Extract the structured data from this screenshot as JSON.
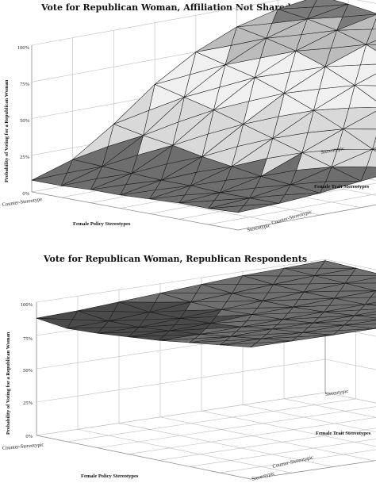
{
  "chart_data": [
    {
      "type": "surface",
      "title": "Vote for Republican Woman, Affiliation Not Shared",
      "zlabel": "Probability of Voting for a Republican Woman",
      "xlabel": "Female Policy Stereotypes",
      "ylabel": "Female Trait Stereotypes",
      "x_ticks": [
        "Counter-Stereotype",
        "Stereotypic"
      ],
      "y_ticks": [
        "Counter-Stereotypic",
        "Stereotypic"
      ],
      "z_ticks": [
        "0%",
        "25%",
        "50%",
        "75%",
        "100%"
      ],
      "zlim": [
        0,
        1
      ],
      "x": [
        0,
        1,
        2,
        3,
        4,
        5,
        6,
        7
      ],
      "y": [
        0,
        1,
        2,
        3,
        4,
        5,
        6,
        7
      ],
      "z": [
        [
          0.08,
          0.08,
          0.09,
          0.09,
          0.1,
          0.11,
          0.11,
          0.12
        ],
        [
          0.17,
          0.16,
          0.15,
          0.14,
          0.14,
          0.13,
          0.13,
          0.13
        ],
        [
          0.36,
          0.32,
          0.29,
          0.25,
          0.22,
          0.19,
          0.17,
          0.15
        ],
        [
          0.58,
          0.53,
          0.48,
          0.42,
          0.36,
          0.3,
          0.24,
          0.18
        ],
        [
          0.75,
          0.7,
          0.65,
          0.58,
          0.5,
          0.41,
          0.31,
          0.21
        ],
        [
          0.87,
          0.83,
          0.78,
          0.71,
          0.62,
          0.51,
          0.38,
          0.24
        ],
        [
          0.94,
          0.91,
          0.87,
          0.81,
          0.72,
          0.59,
          0.44,
          0.26
        ],
        [
          0.98,
          0.96,
          0.93,
          0.87,
          0.78,
          0.65,
          0.48,
          0.28
        ]
      ],
      "color_bands": [
        {
          "from": 0.0,
          "to": 0.25,
          "color": "#6e6e6e"
        },
        {
          "from": 0.25,
          "to": 0.5,
          "color": "#d9d9d9"
        },
        {
          "from": 0.5,
          "to": 0.75,
          "color": "#f0f0f0"
        },
        {
          "from": 0.75,
          "to": 0.9,
          "color": "#bcbcbc"
        },
        {
          "from": 0.9,
          "to": 1.01,
          "color": "#7a7a7a"
        }
      ]
    },
    {
      "type": "surface",
      "title": "Vote for Republican Woman, Republican Respondents",
      "zlabel": "Probability of Voting for a Republican Woman",
      "xlabel": "Female Policy Stereotypes",
      "ylabel": "Female Trait Stereotypes",
      "x_ticks": [
        "Counter-Stereotypic",
        "Stereotypic"
      ],
      "y_ticks": [
        "Counter-Stereotypic",
        "Stereotypic"
      ],
      "z_ticks": [
        "0%",
        "25%",
        "50%",
        "75%",
        "100%"
      ],
      "zlim": [
        0,
        1
      ],
      "x": [
        0,
        1,
        2,
        3,
        4,
        5,
        6,
        7
      ],
      "y": [
        0,
        1,
        2,
        3,
        4,
        5,
        6,
        7
      ],
      "z": [
        [
          0.88,
          0.85,
          0.86,
          0.88,
          0.9,
          0.93,
          0.96,
          0.99
        ],
        [
          0.89,
          0.86,
          0.86,
          0.88,
          0.9,
          0.93,
          0.96,
          0.99
        ],
        [
          0.91,
          0.88,
          0.88,
          0.89,
          0.91,
          0.94,
          0.96,
          0.99
        ],
        [
          0.93,
          0.91,
          0.9,
          0.91,
          0.92,
          0.94,
          0.97,
          0.99
        ],
        [
          0.95,
          0.93,
          0.92,
          0.92,
          0.93,
          0.95,
          0.97,
          0.99
        ],
        [
          0.97,
          0.95,
          0.94,
          0.94,
          0.94,
          0.96,
          0.97,
          0.99
        ],
        [
          0.98,
          0.97,
          0.96,
          0.95,
          0.96,
          0.97,
          0.98,
          0.99
        ],
        [
          0.99,
          0.98,
          0.97,
          0.97,
          0.97,
          0.98,
          0.98,
          0.99
        ]
      ],
      "color_bands": [
        {
          "from": 0.0,
          "to": 0.6,
          "color": "#8a8a8a"
        },
        {
          "from": 0.6,
          "to": 0.8,
          "color": "#6a6a6a"
        },
        {
          "from": 0.8,
          "to": 0.9,
          "color": "#4a4a4a"
        },
        {
          "from": 0.9,
          "to": 1.01,
          "color": "#6f6f6f"
        }
      ]
    }
  ]
}
